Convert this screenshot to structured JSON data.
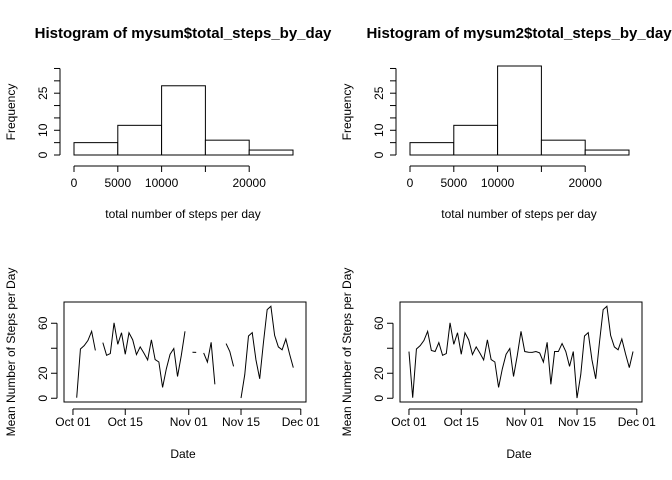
{
  "chart_data": [
    {
      "type": "histogram",
      "title": "Histogram of mysum$total_steps_by_day",
      "xlabel": "total number of steps per day",
      "ylabel": "Frequency",
      "bins": [
        0,
        5000,
        10000,
        15000,
        20000,
        25000
      ],
      "counts": [
        5,
        12,
        28,
        6,
        2
      ],
      "color": "#ffffff",
      "xlim": [
        0,
        25000
      ],
      "ylim": [
        0,
        36
      ],
      "xticks": [
        0,
        5000,
        10000,
        20000
      ],
      "xticks_minor": [
        15000
      ],
      "yticks": [
        0,
        10,
        25
      ],
      "yticks_minor": [
        5,
        15,
        20,
        30,
        35
      ]
    },
    {
      "type": "histogram",
      "title": "Histogram of mysum2$total_steps_by_day",
      "xlabel": "total number of steps per day",
      "ylabel": "Frequency",
      "bins": [
        0,
        5000,
        10000,
        15000,
        20000,
        25000
      ],
      "counts": [
        5,
        12,
        36,
        6,
        2
      ],
      "color": "#ffffff",
      "xlim": [
        0,
        25000
      ],
      "ylim": [
        0,
        36
      ],
      "xticks": [
        0,
        5000,
        10000,
        20000
      ],
      "xticks_minor": [
        15000
      ],
      "yticks": [
        0,
        10,
        25
      ],
      "yticks_minor": [
        5,
        15,
        20,
        30,
        35
      ]
    },
    {
      "type": "line",
      "xlabel": "Date",
      "ylabel": "Mean Number of Steps per Day",
      "color": "#000000",
      "x": [
        "Oct 01",
        "Oct 02",
        "Oct 03",
        "Oct 04",
        "Oct 05",
        "Oct 06",
        "Oct 07",
        "Oct 08",
        "Oct 09",
        "Oct 10",
        "Oct 11",
        "Oct 12",
        "Oct 13",
        "Oct 14",
        "Oct 15",
        "Oct 16",
        "Oct 17",
        "Oct 18",
        "Oct 19",
        "Oct 20",
        "Oct 21",
        "Oct 22",
        "Oct 23",
        "Oct 24",
        "Oct 25",
        "Oct 26",
        "Oct 27",
        "Oct 28",
        "Oct 29",
        "Oct 30",
        "Oct 31",
        "Nov 01",
        "Nov 02",
        "Nov 03",
        "Nov 04",
        "Nov 05",
        "Nov 06",
        "Nov 07",
        "Nov 08",
        "Nov 09",
        "Nov 10",
        "Nov 11",
        "Nov 12",
        "Nov 13",
        "Nov 14",
        "Nov 15",
        "Nov 16",
        "Nov 17",
        "Nov 18",
        "Nov 19",
        "Nov 20",
        "Nov 21",
        "Nov 22",
        "Nov 23",
        "Nov 24",
        "Nov 25",
        "Nov 26",
        "Nov 27",
        "Nov 28",
        "Nov 29",
        "Nov 30"
      ],
      "values": [
        null,
        0.44,
        39.42,
        42.07,
        46.16,
        53.54,
        38.25,
        null,
        44.48,
        34.38,
        35.78,
        60.35,
        43.15,
        52.42,
        35.2,
        52.38,
        46.71,
        34.92,
        41.07,
        36.09,
        30.63,
        46.74,
        30.97,
        29.01,
        8.65,
        23.53,
        35.14,
        39.78,
        17.42,
        34.09,
        53.52,
        null,
        36.81,
        36.7,
        null,
        36.25,
        28.94,
        44.73,
        11.18,
        null,
        null,
        43.78,
        37.38,
        25.47,
        null,
        0.14,
        18.89,
        49.79,
        52.47,
        30.7,
        15.53,
        44.4,
        70.93,
        73.59,
        50.27,
        41.09,
        38.76,
        47.38,
        35.36,
        24.47,
        null
      ],
      "xlim": [
        -2.4,
        62.4
      ],
      "ylim": [
        -3,
        77
      ],
      "xticks": [
        {
          "value": 0,
          "label": "Oct 01"
        },
        {
          "value": 14,
          "label": "Oct 15"
        },
        {
          "value": 31,
          "label": "Nov 01"
        },
        {
          "value": 45,
          "label": "Nov 15"
        },
        {
          "value": 61,
          "label": "Dec 01"
        }
      ],
      "yticks": [
        0,
        20,
        60
      ],
      "yticks_minor": [
        40
      ]
    },
    {
      "type": "line",
      "xlabel": "Date",
      "ylabel": "Mean Number of Steps per Day",
      "color": "#000000",
      "x": [
        "Oct 01",
        "Oct 02",
        "Oct 03",
        "Oct 04",
        "Oct 05",
        "Oct 06",
        "Oct 07",
        "Oct 08",
        "Oct 09",
        "Oct 10",
        "Oct 11",
        "Oct 12",
        "Oct 13",
        "Oct 14",
        "Oct 15",
        "Oct 16",
        "Oct 17",
        "Oct 18",
        "Oct 19",
        "Oct 20",
        "Oct 21",
        "Oct 22",
        "Oct 23",
        "Oct 24",
        "Oct 25",
        "Oct 26",
        "Oct 27",
        "Oct 28",
        "Oct 29",
        "Oct 30",
        "Oct 31",
        "Nov 01",
        "Nov 02",
        "Nov 03",
        "Nov 04",
        "Nov 05",
        "Nov 06",
        "Nov 07",
        "Nov 08",
        "Nov 09",
        "Nov 10",
        "Nov 11",
        "Nov 12",
        "Nov 13",
        "Nov 14",
        "Nov 15",
        "Nov 16",
        "Nov 17",
        "Nov 18",
        "Nov 19",
        "Nov 20",
        "Nov 21",
        "Nov 22",
        "Nov 23",
        "Nov 24",
        "Nov 25",
        "Nov 26",
        "Nov 27",
        "Nov 28",
        "Nov 29",
        "Nov 30"
      ],
      "values": [
        37.38,
        0.44,
        39.42,
        42.07,
        46.16,
        53.54,
        38.25,
        37.38,
        44.48,
        34.38,
        35.78,
        60.35,
        43.15,
        52.42,
        35.2,
        52.38,
        46.71,
        34.92,
        41.07,
        36.09,
        30.63,
        46.74,
        30.97,
        29.01,
        8.65,
        23.53,
        35.14,
        39.78,
        17.42,
        34.09,
        53.52,
        37.38,
        36.81,
        36.7,
        37.38,
        36.25,
        28.94,
        44.73,
        11.18,
        37.38,
        37.38,
        43.78,
        37.38,
        25.47,
        37.38,
        0.14,
        18.89,
        49.79,
        52.47,
        30.7,
        15.53,
        44.4,
        70.93,
        73.59,
        50.27,
        41.09,
        38.76,
        47.38,
        35.36,
        24.47,
        37.38
      ],
      "xlim": [
        -2.4,
        62.4
      ],
      "ylim": [
        -3,
        77
      ],
      "xticks": [
        {
          "value": 0,
          "label": "Oct 01"
        },
        {
          "value": 14,
          "label": "Oct 15"
        },
        {
          "value": 31,
          "label": "Nov 01"
        },
        {
          "value": 45,
          "label": "Nov 15"
        },
        {
          "value": 61,
          "label": "Dec 01"
        }
      ],
      "yticks": [
        0,
        20,
        60
      ],
      "yticks_minor": [
        40
      ]
    }
  ]
}
